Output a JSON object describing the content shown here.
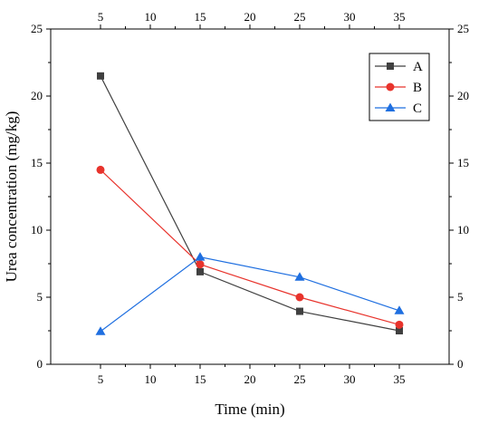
{
  "chart_data": {
    "type": "line",
    "x": [
      5,
      15,
      25,
      35
    ],
    "xlabel": "Time (min)",
    "ylabel": "Urea concentration (mg/kg)",
    "xlim": [
      0,
      40
    ],
    "ylim": [
      0,
      25
    ],
    "xticks": [
      5,
      10,
      15,
      20,
      25,
      30,
      35
    ],
    "yticks": [
      0,
      5,
      10,
      15,
      20,
      25
    ],
    "grid": false,
    "legend_position": "top-right",
    "mirror_axes": "top-and-right",
    "series": [
      {
        "name": "A",
        "values": [
          21.5,
          6.9,
          3.95,
          2.5
        ],
        "color": "#404040",
        "marker": "square"
      },
      {
        "name": "B",
        "values": [
          14.5,
          7.45,
          5.0,
          2.95
        ],
        "color": "#e8332c",
        "marker": "circle"
      },
      {
        "name": "C",
        "values": [
          2.45,
          8.0,
          6.5,
          4.0
        ],
        "color": "#1f6fe0",
        "marker": "triangle"
      }
    ]
  }
}
